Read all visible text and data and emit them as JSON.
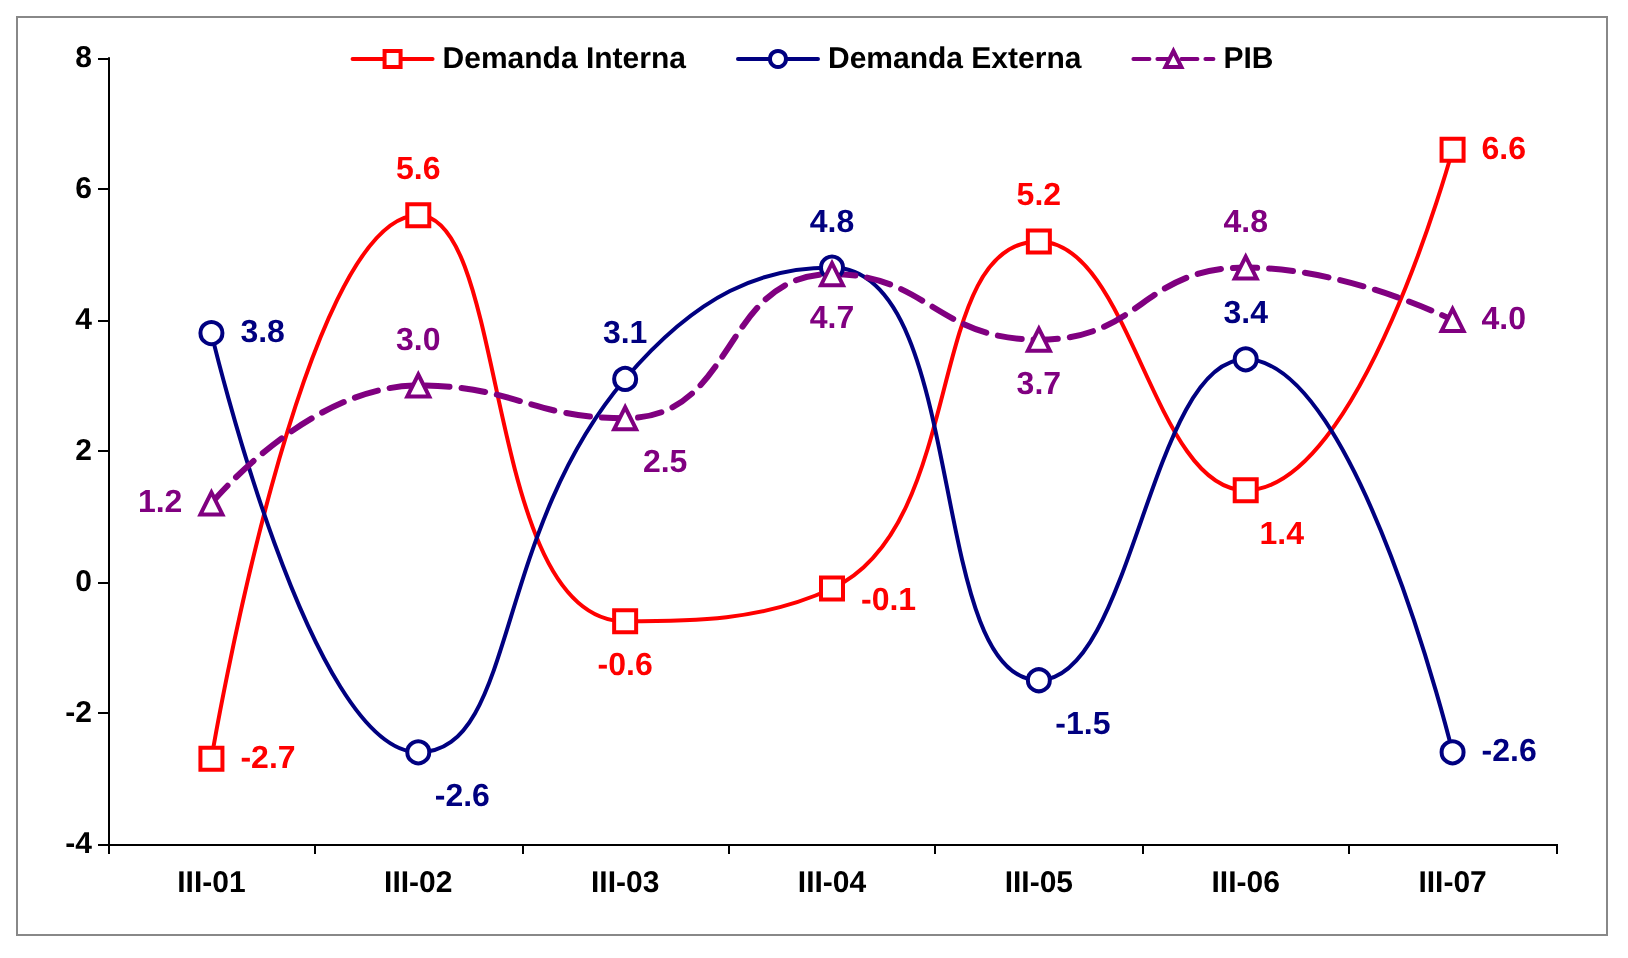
{
  "chart_data": {
    "type": "line",
    "categories": [
      "III-01",
      "III-02",
      "III-03",
      "III-04",
      "III-05",
      "III-06",
      "III-07"
    ],
    "series": [
      {
        "name": "Demanda Interna",
        "color": "#ff0000",
        "marker": "square",
        "line_style": "solid",
        "values": [
          -2.7,
          5.6,
          -0.6,
          -0.1,
          5.2,
          1.4,
          6.6
        ],
        "value_labels": [
          "-2.7",
          "5.6",
          "-0.6",
          "-0.1",
          "5.2",
          "1.4",
          "6.6"
        ]
      },
      {
        "name": "Demanda Externa",
        "color": "#000080",
        "marker": "circle",
        "line_style": "solid",
        "values": [
          3.8,
          -2.6,
          3.1,
          4.8,
          -1.5,
          3.4,
          -2.6
        ],
        "value_labels": [
          "3.8",
          "-2.6",
          "3.1",
          "4.8",
          "-1.5",
          "3.4",
          "-2.6"
        ]
      },
      {
        "name": "PIB",
        "color": "#800080",
        "marker": "triangle",
        "line_style": "dashed",
        "values": [
          1.2,
          3.0,
          2.5,
          4.7,
          3.7,
          4.8,
          4.0
        ],
        "value_labels": [
          "1.2",
          "3.0",
          "2.5",
          "4.7",
          "3.7",
          "4.8",
          "4.0"
        ]
      }
    ],
    "ylim": [
      -4,
      8
    ],
    "yticks": [
      -4,
      -2,
      0,
      2,
      4,
      6,
      8
    ],
    "grid": false,
    "legend": "top"
  }
}
